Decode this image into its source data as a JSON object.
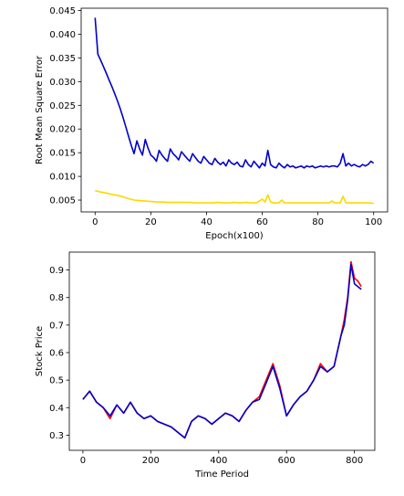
{
  "chart_data": [
    {
      "type": "line",
      "xlabel": "Epoch(x100)",
      "ylabel": "Root Mean Square Error",
      "xlim": [
        -5,
        105
      ],
      "ylim": [
        0.0025,
        0.0455
      ],
      "xticks": [
        0,
        20,
        40,
        60,
        80,
        100
      ],
      "yticks": [
        0.005,
        0.01,
        0.015,
        0.02,
        0.025,
        0.03,
        0.035,
        0.04,
        0.045
      ],
      "ytick_labels": [
        "0.005",
        "0.010",
        "0.015",
        "0.020",
        "0.025",
        "0.030",
        "0.035",
        "0.040",
        "0.045"
      ],
      "grid": false,
      "series": [
        {
          "color": "#0000cc",
          "x": [
            0,
            1,
            2,
            3,
            4,
            5,
            6,
            7,
            8,
            9,
            10,
            11,
            12,
            13,
            14,
            15,
            16,
            17,
            18,
            19,
            20,
            21,
            22,
            23,
            24,
            25,
            26,
            27,
            28,
            29,
            30,
            31,
            32,
            33,
            34,
            35,
            36,
            37,
            38,
            39,
            40,
            41,
            42,
            43,
            44,
            45,
            46,
            47,
            48,
            49,
            50,
            51,
            52,
            53,
            54,
            55,
            56,
            57,
            58,
            59,
            60,
            61,
            62,
            63,
            64,
            65,
            66,
            67,
            68,
            69,
            70,
            71,
            72,
            73,
            74,
            75,
            76,
            77,
            78,
            79,
            80,
            81,
            82,
            83,
            84,
            85,
            86,
            87,
            88,
            89,
            90,
            91,
            92,
            93,
            94,
            95,
            96,
            97,
            98,
            99,
            100
          ],
          "y": [
            0.0435,
            0.0358,
            0.0345,
            0.0332,
            0.0318,
            0.0304,
            0.029,
            0.0275,
            0.026,
            0.0243,
            0.0225,
            0.0205,
            0.0185,
            0.0165,
            0.0148,
            0.0175,
            0.0158,
            0.0145,
            0.0178,
            0.016,
            0.0145,
            0.014,
            0.0132,
            0.0155,
            0.0145,
            0.0138,
            0.0132,
            0.0158,
            0.0148,
            0.0142,
            0.0135,
            0.0152,
            0.0145,
            0.0138,
            0.0132,
            0.0148,
            0.014,
            0.0132,
            0.0128,
            0.0142,
            0.0135,
            0.0128,
            0.0125,
            0.0138,
            0.013,
            0.0125,
            0.013,
            0.0122,
            0.0135,
            0.0128,
            0.0125,
            0.013,
            0.0122,
            0.012,
            0.0135,
            0.0125,
            0.012,
            0.0132,
            0.0125,
            0.0118,
            0.0128,
            0.0122,
            0.0155,
            0.0125,
            0.012,
            0.0118,
            0.0128,
            0.0122,
            0.0118,
            0.0125,
            0.012,
            0.0122,
            0.0118,
            0.012,
            0.0122,
            0.0118,
            0.0122,
            0.012,
            0.0122,
            0.0118,
            0.012,
            0.0122,
            0.012,
            0.0122,
            0.012,
            0.0122,
            0.0122,
            0.012,
            0.0128,
            0.0148,
            0.0122,
            0.0128,
            0.0122,
            0.0125,
            0.0122,
            0.012,
            0.0125,
            0.0122,
            0.0125,
            0.0132,
            0.0128
          ]
        },
        {
          "color": "#ffd700",
          "x": [
            0,
            2,
            4,
            6,
            8,
            10,
            12,
            14,
            16,
            18,
            20,
            22,
            24,
            26,
            28,
            30,
            32,
            34,
            36,
            38,
            40,
            42,
            44,
            46,
            48,
            50,
            52,
            54,
            56,
            58,
            60,
            61,
            62,
            63,
            64,
            66,
            67,
            68,
            70,
            72,
            74,
            76,
            78,
            80,
            82,
            84,
            85,
            86,
            88,
            89,
            90,
            92,
            94,
            96,
            98,
            100
          ],
          "y": [
            0.007,
            0.0067,
            0.0065,
            0.0062,
            0.006,
            0.0057,
            0.0053,
            0.005,
            0.0049,
            0.0048,
            0.0047,
            0.0046,
            0.0046,
            0.0045,
            0.0045,
            0.0045,
            0.0045,
            0.0045,
            0.0044,
            0.0044,
            0.0044,
            0.0044,
            0.0045,
            0.0044,
            0.0044,
            0.0045,
            0.0044,
            0.0045,
            0.0044,
            0.0044,
            0.0052,
            0.0046,
            0.0061,
            0.0046,
            0.0044,
            0.0044,
            0.005,
            0.0044,
            0.0044,
            0.0044,
            0.0044,
            0.0044,
            0.0044,
            0.0044,
            0.0044,
            0.0044,
            0.0048,
            0.0044,
            0.0044,
            0.0058,
            0.0044,
            0.0044,
            0.0044,
            0.0044,
            0.0044,
            0.0043
          ]
        }
      ]
    },
    {
      "type": "line",
      "xlabel": "Time Period",
      "ylabel": "Stock Price",
      "xlim": [
        -40,
        860
      ],
      "ylim": [
        0.245,
        0.965
      ],
      "xticks": [
        0,
        200,
        400,
        600,
        800
      ],
      "yticks": [
        0.3,
        0.4,
        0.5,
        0.6,
        0.7,
        0.8,
        0.9
      ],
      "ytick_labels": [
        "0.3",
        "0.4",
        "0.5",
        "0.6",
        "0.7",
        "0.8",
        "0.9"
      ],
      "grid": false,
      "series": [
        {
          "color": "#ff0000",
          "x": [
            0,
            20,
            40,
            60,
            80,
            100,
            120,
            140,
            160,
            180,
            200,
            220,
            240,
            260,
            280,
            300,
            320,
            340,
            360,
            380,
            400,
            420,
            440,
            460,
            480,
            500,
            520,
            540,
            560,
            580,
            600,
            620,
            640,
            660,
            680,
            700,
            720,
            740,
            760,
            770,
            780,
            790,
            800,
            810,
            820
          ],
          "y": [
            0.43,
            0.46,
            0.42,
            0.4,
            0.36,
            0.41,
            0.38,
            0.42,
            0.38,
            0.36,
            0.37,
            0.35,
            0.34,
            0.33,
            0.31,
            0.29,
            0.35,
            0.37,
            0.36,
            0.34,
            0.36,
            0.38,
            0.37,
            0.35,
            0.39,
            0.42,
            0.44,
            0.5,
            0.56,
            0.48,
            0.37,
            0.41,
            0.44,
            0.46,
            0.5,
            0.56,
            0.53,
            0.55,
            0.66,
            0.72,
            0.8,
            0.93,
            0.87,
            0.86,
            0.84
          ]
        },
        {
          "color": "#0000cc",
          "x": [
            0,
            20,
            40,
            60,
            80,
            100,
            120,
            140,
            160,
            180,
            200,
            220,
            240,
            260,
            280,
            300,
            320,
            340,
            360,
            380,
            400,
            420,
            440,
            460,
            480,
            500,
            520,
            540,
            560,
            580,
            600,
            620,
            640,
            660,
            680,
            700,
            720,
            740,
            760,
            770,
            780,
            790,
            800,
            810,
            820
          ],
          "y": [
            0.43,
            0.46,
            0.42,
            0.4,
            0.37,
            0.41,
            0.38,
            0.42,
            0.38,
            0.36,
            0.37,
            0.35,
            0.34,
            0.33,
            0.31,
            0.29,
            0.35,
            0.37,
            0.36,
            0.34,
            0.36,
            0.38,
            0.37,
            0.35,
            0.39,
            0.42,
            0.43,
            0.49,
            0.55,
            0.47,
            0.37,
            0.41,
            0.44,
            0.46,
            0.5,
            0.55,
            0.53,
            0.55,
            0.66,
            0.7,
            0.79,
            0.92,
            0.85,
            0.84,
            0.83
          ]
        }
      ]
    }
  ]
}
